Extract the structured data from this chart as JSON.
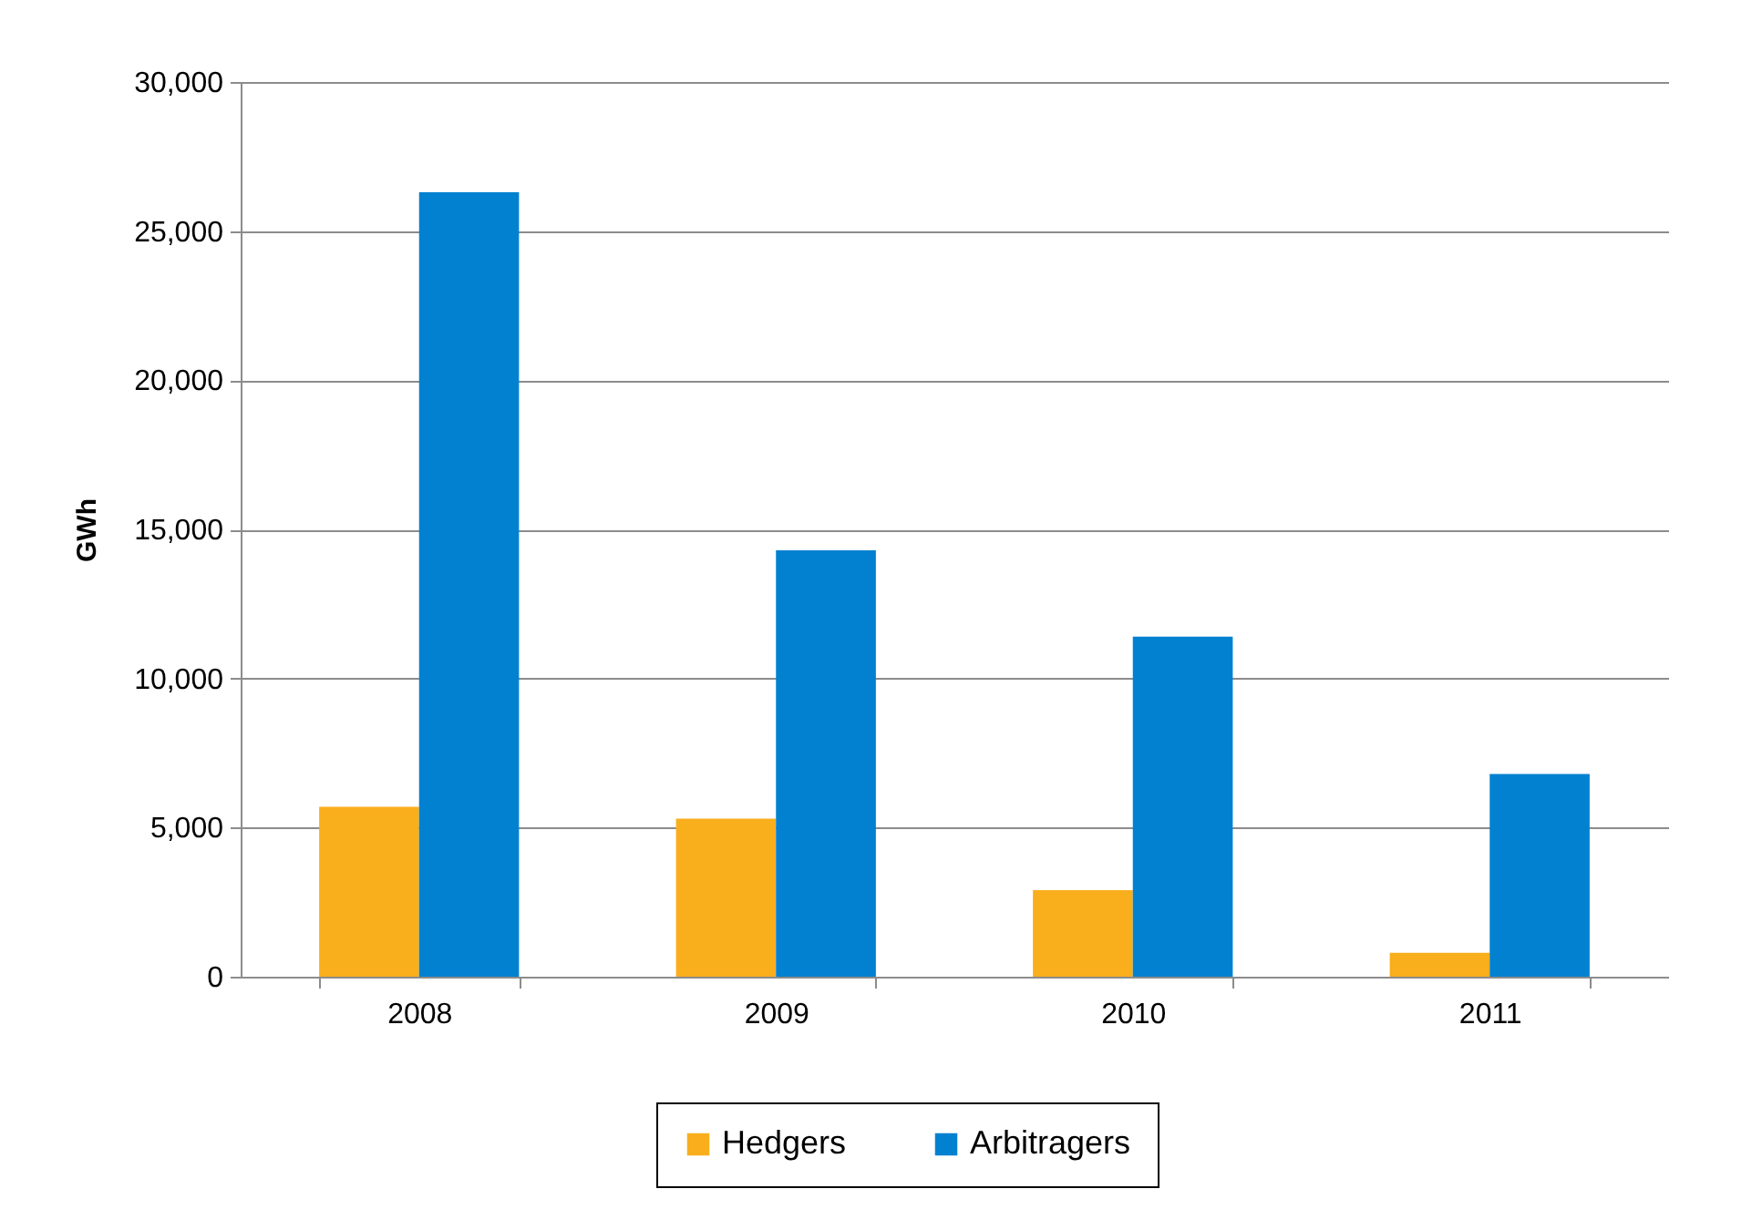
{
  "chart_data": {
    "type": "bar",
    "ylabel": "GWh",
    "categories": [
      "2008",
      "2009",
      "2010",
      "2011"
    ],
    "series": [
      {
        "name": "Hedgers",
        "color": "#f9ae1c",
        "values": [
          5700,
          5300,
          2900,
          800
        ]
      },
      {
        "name": "Arbitragers",
        "color": "#0281d1",
        "values": [
          26300,
          14300,
          11400,
          6800
        ]
      }
    ],
    "ylim": [
      0,
      30000
    ],
    "yticks": [
      0,
      {
        "value": 5000,
        "label": "5,000"
      },
      {
        "value": 10000,
        "label": "10,000"
      },
      {
        "value": 15000,
        "label": "15,000"
      },
      {
        "value": 20000,
        "label": "20,000"
      },
      {
        "value": 25000,
        "label": "25,000"
      },
      {
        "value": 30000,
        "label": "30,000"
      }
    ],
    "grid": "y",
    "legend": "bottom"
  }
}
